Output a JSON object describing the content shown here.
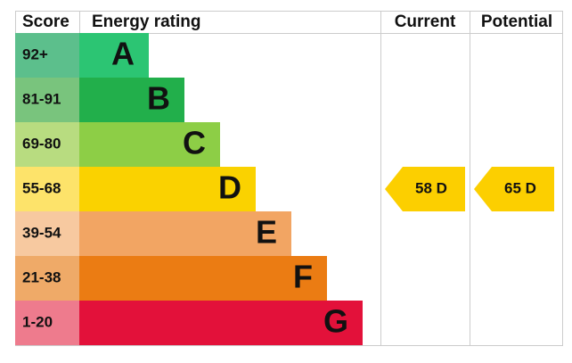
{
  "header": {
    "score": "Score",
    "rating": "Energy rating",
    "current": "Current",
    "potential": "Potential"
  },
  "bands": [
    {
      "score": "92+",
      "letter": "A"
    },
    {
      "score": "81-91",
      "letter": "B"
    },
    {
      "score": "69-80",
      "letter": "C"
    },
    {
      "score": "55-68",
      "letter": "D"
    },
    {
      "score": "39-54",
      "letter": "E"
    },
    {
      "score": "21-38",
      "letter": "F"
    },
    {
      "score": "1-20",
      "letter": "G"
    }
  ],
  "current": "58 D",
  "potential": "65 D"
}
